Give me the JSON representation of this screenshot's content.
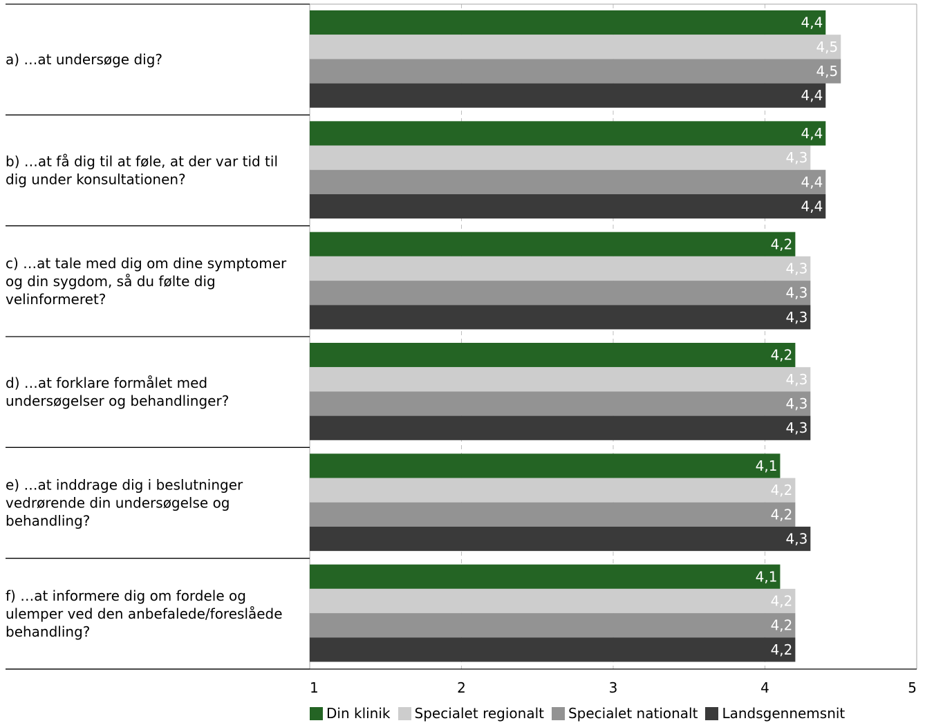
{
  "chart_data": {
    "type": "bar",
    "orientation": "horizontal",
    "title": "",
    "xlabel": "",
    "ylabel": "",
    "xlim": [
      1,
      5
    ],
    "x_ticks": [
      "1",
      "2",
      "3",
      "4",
      "5"
    ],
    "grid": "vertical dashed",
    "legend_position": "bottom",
    "categories": [
      "a) …at undersøge dig?",
      "b) …at få dig til at føle, at der var tid til dig under konsultationen?",
      "c) …at tale med dig om dine symptomer og din sygdom, så du følte dig velinformeret?",
      "d) …at forklare formålet med undersøgelser og behandlinger?",
      "e) …at inddrage dig i beslutninger vedrørende din undersøgelse og behandling?",
      "f) …at informere dig om fordele og ulemper ved den anbefalede/foreslåede behandling?"
    ],
    "category_lines": [
      [
        "a) …at undersøge dig?"
      ],
      [
        "b) …at få dig til at føle, at der var tid til",
        "dig under konsultationen?"
      ],
      [
        "c) …at tale med dig om dine symptomer",
        "og din sygdom, så du følte dig",
        "velinformeret?"
      ],
      [
        "d) …at forklare formålet med",
        "undersøgelser og behandlinger?"
      ],
      [
        "e) …at inddrage dig i beslutninger",
        "vedrørende din undersøgelse og",
        "behandling?"
      ],
      [
        "f) …at informere dig om fordele og",
        "ulemper ved den anbefalede/foreslåede",
        "behandling?"
      ]
    ],
    "series": [
      {
        "name": "Din klinik",
        "color": "#246424",
        "label_color": "#ffffff",
        "values": [
          4.4,
          4.4,
          4.2,
          4.2,
          4.1,
          4.1
        ],
        "labels": [
          "4,4",
          "4,4",
          "4,2",
          "4,2",
          "4,1",
          "4,1"
        ]
      },
      {
        "name": "Specialet regionalt",
        "color": "#cdcdcd",
        "label_color": "#ffffff",
        "values": [
          4.5,
          4.3,
          4.3,
          4.3,
          4.2,
          4.2
        ],
        "labels": [
          "4,5",
          "4,3",
          "4,3",
          "4,3",
          "4,2",
          "4,2"
        ]
      },
      {
        "name": "Specialet nationalt",
        "color": "#939393",
        "label_color": "#ffffff",
        "values": [
          4.5,
          4.4,
          4.3,
          4.3,
          4.2,
          4.2
        ],
        "labels": [
          "4,5",
          "4,4",
          "4,3",
          "4,3",
          "4,2",
          "4,2"
        ]
      },
      {
        "name": "Landsgennemsnit",
        "color": "#3a3a3a",
        "label_color": "#ffffff",
        "values": [
          4.4,
          4.4,
          4.3,
          4.3,
          4.3,
          4.2
        ],
        "labels": [
          "4,4",
          "4,4",
          "4,3",
          "4,3",
          "4,3",
          "4,2"
        ]
      }
    ]
  }
}
